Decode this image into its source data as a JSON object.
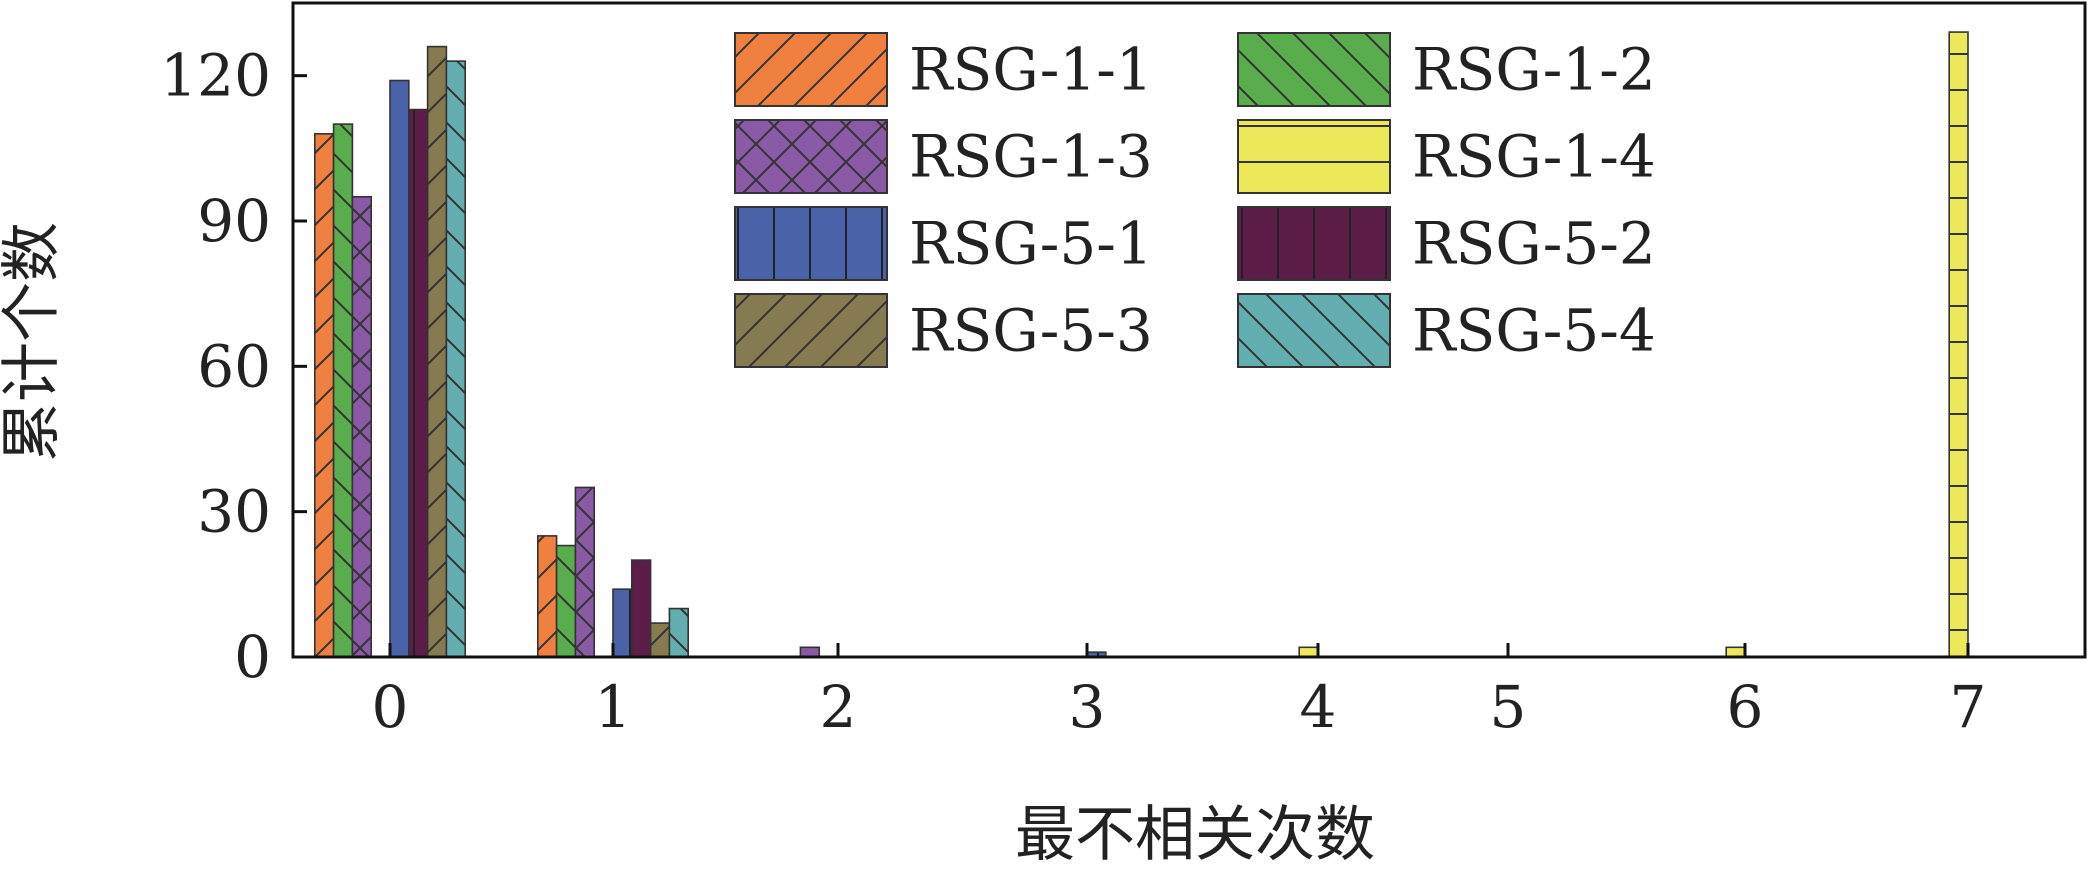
{
  "chart_data": {
    "type": "bar",
    "xlabel": "最不相关次数",
    "ylabel": "累计个数",
    "categories": [
      "0",
      "1",
      "2",
      "3",
      "4",
      "5",
      "6",
      "7"
    ],
    "ylim": [
      0,
      135
    ],
    "yticks": [
      0,
      30,
      60,
      90,
      120
    ],
    "grid": false,
    "legend_position": "top",
    "series": [
      {
        "name": "RSG-1-1",
        "color": "#f08040",
        "pattern": "diag-fwd",
        "values": [
          108,
          25,
          0,
          0,
          0,
          0,
          0,
          0
        ]
      },
      {
        "name": "RSG-1-2",
        "color": "#5aad4c",
        "pattern": "diag-back",
        "values": [
          110,
          23,
          0,
          0,
          0,
          0,
          0,
          0
        ]
      },
      {
        "name": "RSG-1-3",
        "color": "#8a5aa6",
        "pattern": "cross",
        "values": [
          95,
          35,
          2,
          0,
          0,
          0,
          0,
          0
        ]
      },
      {
        "name": "RSG-1-4",
        "color": "#ece85a",
        "pattern": "horizontal",
        "values": [
          0,
          0,
          0,
          0,
          2,
          0,
          2,
          129
        ]
      },
      {
        "name": "RSG-5-1",
        "color": "#4a62a8",
        "pattern": "vertical",
        "values": [
          119,
          14,
          0,
          1,
          0,
          0,
          0,
          0
        ]
      },
      {
        "name": "RSG-5-2",
        "color": "#5c1e48",
        "pattern": "vertical",
        "values": [
          113,
          20,
          0,
          0,
          0,
          0,
          0,
          0
        ]
      },
      {
        "name": "RSG-5-3",
        "color": "#857a50",
        "pattern": "diag-fwd",
        "values": [
          126,
          7,
          0,
          0,
          0,
          0,
          0,
          0
        ]
      },
      {
        "name": "RSG-5-4",
        "color": "#62aeb0",
        "pattern": "diag-back",
        "values": [
          123,
          10,
          0,
          0,
          0,
          0,
          0,
          0
        ]
      }
    ]
  }
}
